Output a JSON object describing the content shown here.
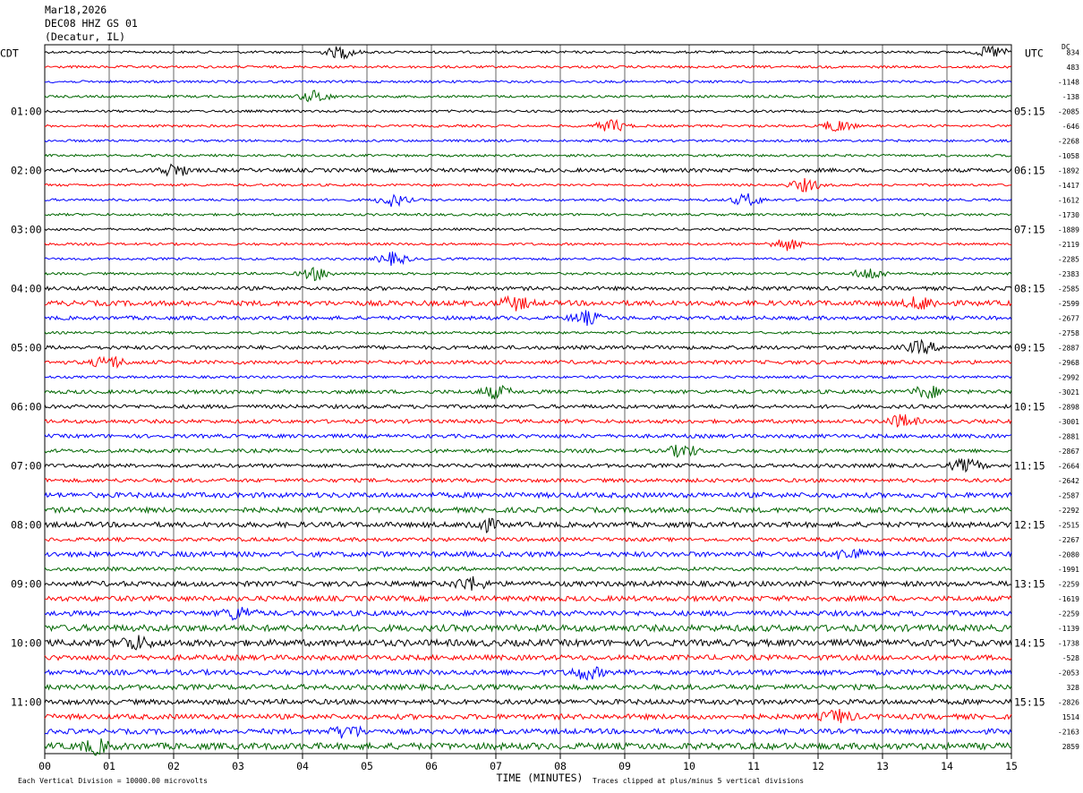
{
  "header": {
    "date": "Mar18,2026",
    "station": "DEC08 HHZ GS 01",
    "location": "(Decatur, IL)"
  },
  "chart_data": {
    "type": "line",
    "left_timezone_label": "CDT",
    "right_timezone_label": "UTC",
    "xlabel": "TIME (MINUTES)",
    "x_tick_labels": [
      "00",
      "01",
      "02",
      "03",
      "04",
      "05",
      "06",
      "07",
      "08",
      "09",
      "10",
      "11",
      "12",
      "13",
      "14",
      "15"
    ],
    "xlim": [
      0,
      15
    ],
    "rows_per_hour": 4,
    "row_count": 48,
    "trace_color_cycle": [
      "#000000",
      "#ff0000",
      "#0000ff",
      "#006600"
    ],
    "left_hour_labels": [
      {
        "row": 4,
        "text": "01:00"
      },
      {
        "row": 8,
        "text": "02:00"
      },
      {
        "row": 12,
        "text": "03:00"
      },
      {
        "row": 16,
        "text": "04:00"
      },
      {
        "row": 20,
        "text": "05:00"
      },
      {
        "row": 24,
        "text": "06:00"
      },
      {
        "row": 28,
        "text": "07:00"
      },
      {
        "row": 32,
        "text": "08:00"
      },
      {
        "row": 36,
        "text": "09:00"
      },
      {
        "row": 40,
        "text": "10:00"
      },
      {
        "row": 44,
        "text": "11:00"
      }
    ],
    "right_hour_labels": [
      {
        "row": 4,
        "text": "05:15"
      },
      {
        "row": 8,
        "text": "06:15"
      },
      {
        "row": 12,
        "text": "07:15"
      },
      {
        "row": 16,
        "text": "08:15"
      },
      {
        "row": 20,
        "text": "09:15"
      },
      {
        "row": 24,
        "text": "10:15"
      },
      {
        "row": 28,
        "text": "11:15"
      },
      {
        "row": 32,
        "text": "12:15"
      },
      {
        "row": 36,
        "text": "13:15"
      },
      {
        "row": 40,
        "text": "14:15"
      },
      {
        "row": 44,
        "text": "15:15"
      }
    ],
    "dc_label": "DC",
    "dc_offsets": [
      "834",
      "483",
      "-1148",
      "-138",
      "-2085",
      "-646",
      "-2268",
      "-1058",
      "-1892",
      "-1417",
      "-1612",
      "-1730",
      "-1889",
      "-2119",
      "-2285",
      "-2383",
      "-2585",
      "-2599",
      "-2677",
      "-2758",
      "-2887",
      "-2968",
      "-2992",
      "-3021",
      "-2898",
      "-3001",
      "-2881",
      "-2867",
      "-2664",
      "-2642",
      "-2587",
      "-2292",
      "-2515",
      "-2267",
      "-2080",
      "-1991",
      "-2259",
      "-1619",
      "-2259",
      "-1139",
      "-1738",
      "-528",
      "-2053",
      "328",
      "-2826",
      "1514",
      "-2163",
      "2859"
    ],
    "activity_level": [
      1,
      1,
      1,
      1,
      1,
      1,
      1,
      1,
      2,
      1,
      1,
      1,
      1,
      1,
      1,
      1,
      2,
      3,
      2,
      1,
      2,
      2,
      1,
      2,
      2,
      2,
      2,
      2,
      2,
      2,
      3,
      3,
      3,
      2,
      3,
      2,
      3,
      3,
      3,
      4,
      4,
      3,
      3,
      3,
      3,
      3,
      3,
      4
    ],
    "events": [
      {
        "row": 0,
        "minute": 4.6
      },
      {
        "row": 0,
        "minute": 14.7
      },
      {
        "row": 3,
        "minute": 4.2
      },
      {
        "row": 5,
        "minute": 8.8
      },
      {
        "row": 5,
        "minute": 12.3
      },
      {
        "row": 8,
        "minute": 2.0
      },
      {
        "row": 9,
        "minute": 11.8
      },
      {
        "row": 10,
        "minute": 5.4
      },
      {
        "row": 10,
        "minute": 10.9
      },
      {
        "row": 13,
        "minute": 11.5
      },
      {
        "row": 14,
        "minute": 5.4
      },
      {
        "row": 15,
        "minute": 4.2
      },
      {
        "row": 15,
        "minute": 12.8
      },
      {
        "row": 17,
        "minute": 7.3
      },
      {
        "row": 17,
        "minute": 13.6
      },
      {
        "row": 18,
        "minute": 8.4
      },
      {
        "row": 20,
        "minute": 13.6
      },
      {
        "row": 21,
        "minute": 1.0
      },
      {
        "row": 23,
        "minute": 7.0
      },
      {
        "row": 23,
        "minute": 13.7
      },
      {
        "row": 25,
        "minute": 13.3
      },
      {
        "row": 27,
        "minute": 9.9
      },
      {
        "row": 28,
        "minute": 14.3
      },
      {
        "row": 32,
        "minute": 6.8
      },
      {
        "row": 34,
        "minute": 12.5
      },
      {
        "row": 36,
        "minute": 6.6
      },
      {
        "row": 38,
        "minute": 3.0
      },
      {
        "row": 40,
        "minute": 1.4
      },
      {
        "row": 42,
        "minute": 8.4
      },
      {
        "row": 45,
        "minute": 12.3
      },
      {
        "row": 46,
        "minute": 4.7
      },
      {
        "row": 47,
        "minute": 0.8
      }
    ],
    "footer_left": "Each Vertical Division = 10000.00 microvolts",
    "footer_right": "Traces clipped at plus/minus 5 vertical divisions"
  }
}
